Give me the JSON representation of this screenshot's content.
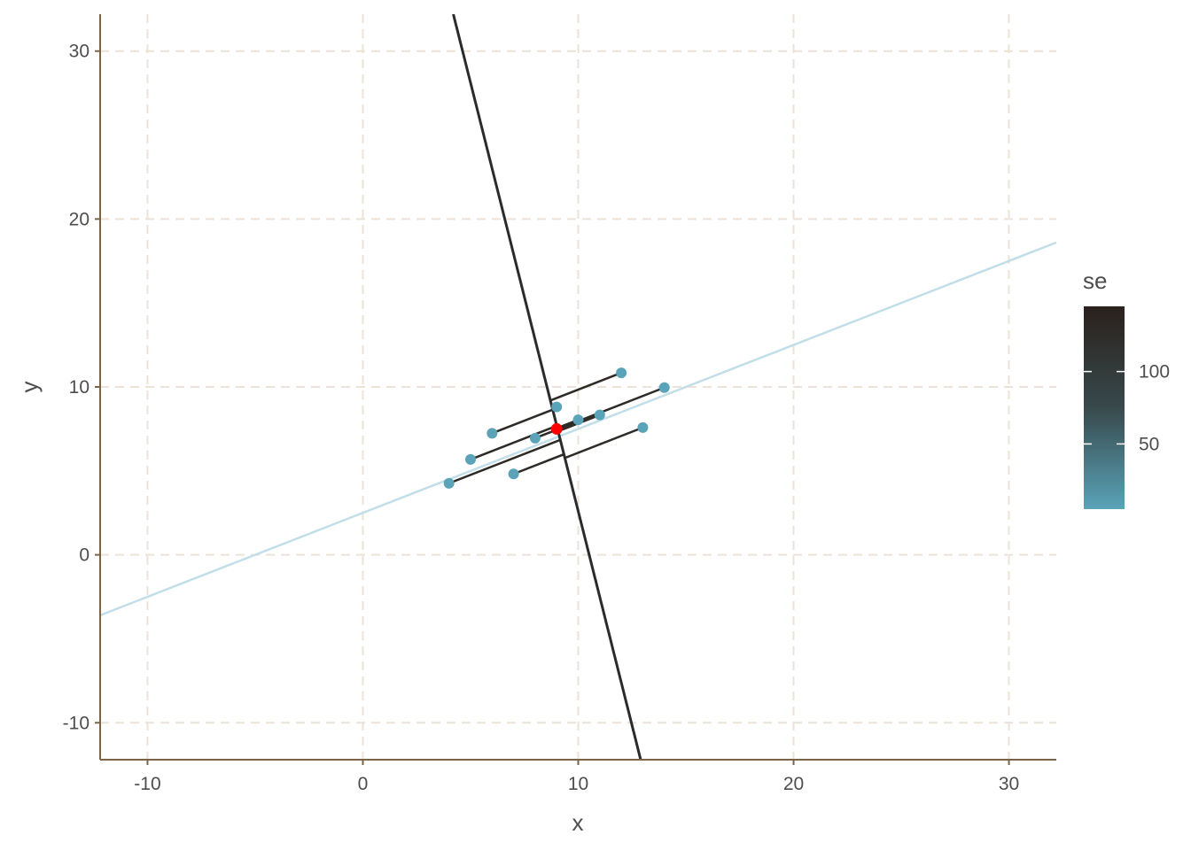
{
  "chart_data": {
    "type": "scatter",
    "xlabel": "x",
    "ylabel": "y",
    "xlim": [
      -12.2,
      32.2
    ],
    "ylim": [
      -12.2,
      32.2
    ],
    "x_ticks": [
      -10,
      0,
      10,
      20,
      30
    ],
    "x_tick_labels": [
      "-10",
      "0",
      "10",
      "20",
      "30"
    ],
    "y_ticks": [
      -10,
      0,
      10,
      20,
      30
    ],
    "y_tick_labels": [
      "-10",
      "0",
      "10",
      "20",
      "30"
    ],
    "grid": true,
    "points": [
      {
        "x": 4,
        "y": 4.26
      },
      {
        "x": 5,
        "y": 5.68
      },
      {
        "x": 6,
        "y": 7.24
      },
      {
        "x": 7,
        "y": 4.82
      },
      {
        "x": 8,
        "y": 6.95
      },
      {
        "x": 9,
        "y": 8.81
      },
      {
        "x": 10,
        "y": 8.04
      },
      {
        "x": 11,
        "y": 8.33
      },
      {
        "x": 12,
        "y": 10.84
      },
      {
        "x": 13,
        "y": 7.58
      },
      {
        "x": 14,
        "y": 9.96
      }
    ],
    "center_point": {
      "x": 9,
      "y": 7.5,
      "color": "#ff0000"
    },
    "fit_line": {
      "slope": 0.5,
      "intercept": 2.5,
      "color": "#c2dee8"
    },
    "steep_line": {
      "points": [
        [
          4.2,
          32.2
        ],
        [
          12.9,
          -12.2
        ]
      ],
      "color": "#2b2b2b"
    },
    "colors": {
      "points": "#5aa3b8",
      "segments": "#2e2a26",
      "grid": "#ece2d6",
      "axis": "#7a6448"
    },
    "legend": {
      "title": "se",
      "position": "right",
      "breaks": [
        50,
        100
      ],
      "break_labels": [
        "50",
        "100"
      ],
      "range": [
        5,
        145
      ],
      "color_low": "#5aa3b8",
      "color_mid": "#38494c",
      "color_high": "#2a211c"
    }
  }
}
